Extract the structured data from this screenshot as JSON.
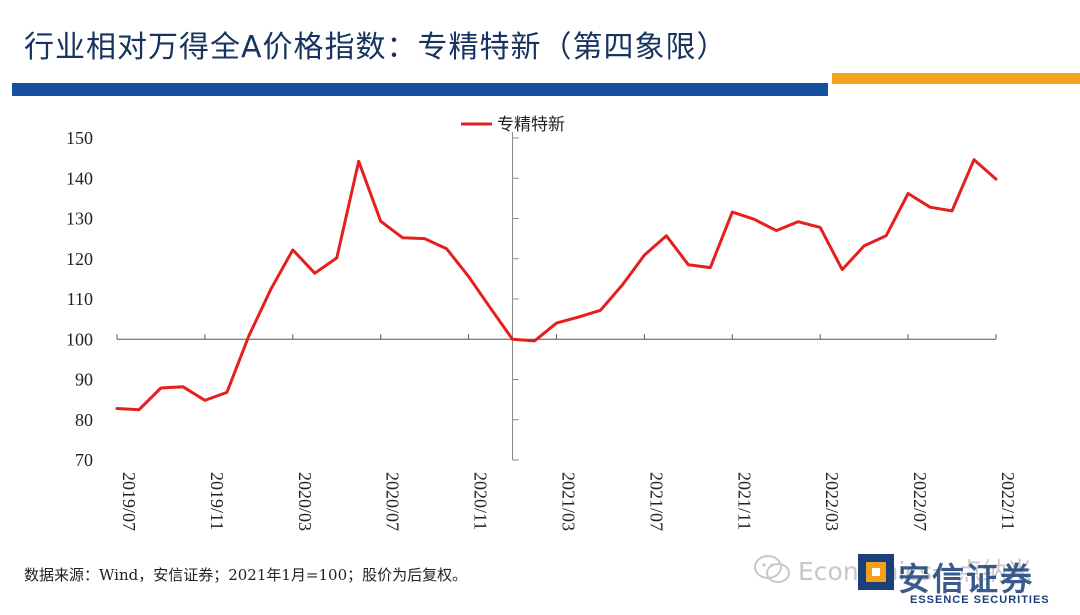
{
  "slide": {
    "title": "行业相对万得全A价格指数：专精特新（第四象限）",
    "source": "数据来源：Wind，安信证券；2021年1月=100；股价为后复权。",
    "watermark": "Economics一点纳米",
    "logo_cn": "安信证券",
    "logo_en": "ESSENCE SECURITIES",
    "colors": {
      "title": "#17335f",
      "bar_blue": "#1650a0",
      "bar_orange": "#f4a21c",
      "series": "#e4201e"
    }
  },
  "chart_data": {
    "type": "line",
    "title": "",
    "xlabel": "",
    "ylabel": "",
    "ylim": [
      70,
      150
    ],
    "yticks": [
      70,
      80,
      90,
      100,
      110,
      120,
      130,
      140,
      150
    ],
    "x_tick_labels": [
      "2019/07",
      "2019/11",
      "2020/03",
      "2020/07",
      "2020/11",
      "2021/03",
      "2021/07",
      "2021/11",
      "2022/03",
      "2022/07",
      "2022/11"
    ],
    "x": [
      "2019/07",
      "2019/08",
      "2019/09",
      "2019/10",
      "2019/11",
      "2019/12",
      "2020/01",
      "2020/02",
      "2020/03",
      "2020/04",
      "2020/05",
      "2020/06",
      "2020/07",
      "2020/08",
      "2020/09",
      "2020/10",
      "2020/11",
      "2020/12",
      "2021/01",
      "2021/02",
      "2021/03",
      "2021/04",
      "2021/05",
      "2021/06",
      "2021/07",
      "2021/08",
      "2021/09",
      "2021/10",
      "2021/11",
      "2021/12",
      "2022/01",
      "2022/02",
      "2022/03",
      "2022/04",
      "2022/05",
      "2022/06",
      "2022/07",
      "2022/08",
      "2022/09",
      "2022/10",
      "2022/11"
    ],
    "series": [
      {
        "name": "专精特新",
        "color": "#e4201e",
        "values": [
          82.8,
          82.5,
          87.9,
          88.2,
          84.8,
          86.8,
          100.8,
          112.4,
          122.2,
          116.4,
          120.2,
          144.2,
          129.3,
          125.2,
          125.0,
          122.5,
          115.6,
          107.7,
          100.0,
          99.6,
          104.0,
          105.5,
          107.2,
          113.5,
          120.9,
          125.7,
          118.5,
          117.8,
          131.6,
          129.8,
          127.0,
          129.2,
          127.8,
          117.3,
          123.2,
          125.7,
          136.2,
          132.8,
          131.9,
          144.6,
          139.8
        ]
      }
    ],
    "legend": "top-center",
    "grid": false
  }
}
